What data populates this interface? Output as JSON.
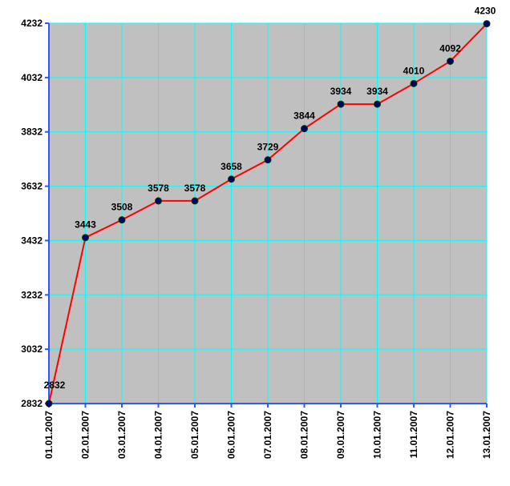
{
  "chart_data": {
    "type": "line",
    "categories": [
      "01.01.2007",
      "02.01.2007",
      "03.01.2007",
      "04.01.2007",
      "05.01.2007",
      "06.01.2007",
      "07.01.2007",
      "08.01.2007",
      "09.01.2007",
      "10.01.2007",
      "11.01.2007",
      "12.01.2007",
      "13.01.2007"
    ],
    "values": [
      2832,
      3443,
      3508,
      3578,
      3578,
      3658,
      3729,
      3844,
      3934,
      3934,
      4010,
      4092,
      4230
    ],
    "color": "#ff0000",
    "marker_color": "#000066",
    "ylim": [
      2832,
      4232
    ],
    "yticks": [
      2832,
      3032,
      3232,
      3432,
      3632,
      3832,
      4032,
      4232
    ],
    "grid": true,
    "plot_background": "#c0c0c0",
    "grid_color": "#00ffff",
    "axis_color": "#3355ff"
  }
}
